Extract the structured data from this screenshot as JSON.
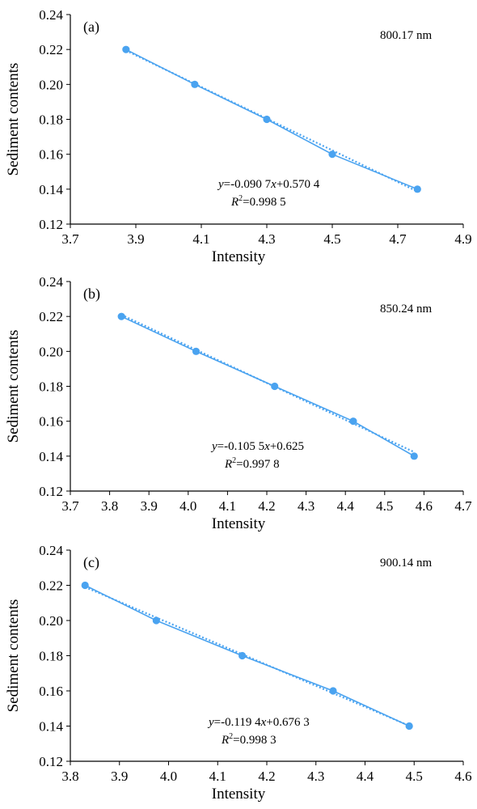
{
  "y_axis_title": "Sediment contents",
  "x_axis_title": "Intensity",
  "series_color": "#4aa3f0",
  "chart_data": [
    {
      "type": "line",
      "panel_label": "(a)",
      "wavelength": "800.17 nm",
      "equation": "y=-0.090 7x+0.570 4",
      "r2": "R2=0.998 5",
      "fit": {
        "slope": -0.0907,
        "intercept": 0.5704
      },
      "xlabel": "Intensity",
      "ylabel": "Sediment contents",
      "xlim": [
        3.7,
        4.9
      ],
      "ylim": [
        0.12,
        0.24
      ],
      "x_ticks": [
        "3.7",
        "3.9",
        "4.1",
        "4.3",
        "4.5",
        "4.7",
        "4.9"
      ],
      "y_ticks": [
        "0.12",
        "0.14",
        "0.16",
        "0.18",
        "0.20",
        "0.22",
        "0.24"
      ],
      "x": [
        3.87,
        4.08,
        4.3,
        4.5,
        4.76
      ],
      "y": [
        0.22,
        0.2,
        0.18,
        0.16,
        0.14
      ]
    },
    {
      "type": "line",
      "panel_label": "(b)",
      "wavelength": "850.24 nm",
      "equation": "y=-0.105 5x+0.625",
      "r2": "R2=0.997 8",
      "fit": {
        "slope": -0.1055,
        "intercept": 0.625
      },
      "xlabel": "Intensity",
      "ylabel": "Sediment contents",
      "xlim": [
        3.7,
        4.7
      ],
      "ylim": [
        0.12,
        0.24
      ],
      "x_ticks": [
        "3.7",
        "3.8",
        "3.9",
        "4.0",
        "4.1",
        "4.2",
        "4.3",
        "4.4",
        "4.5",
        "4.6",
        "4.7"
      ],
      "y_ticks": [
        "0.12",
        "0.14",
        "0.16",
        "0.18",
        "0.20",
        "0.22",
        "0.24"
      ],
      "x": [
        3.83,
        4.02,
        4.22,
        4.42,
        4.575
      ],
      "y": [
        0.22,
        0.2,
        0.18,
        0.16,
        0.14
      ]
    },
    {
      "type": "line",
      "panel_label": "(c)",
      "wavelength": "900.14 nm",
      "equation": "y=-0.119 4x+0.676 3",
      "r2": "R2=0.998 3",
      "fit": {
        "slope": -0.1194,
        "intercept": 0.6763
      },
      "xlabel": "Intensity",
      "ylabel": "Sediment contents",
      "xlim": [
        3.8,
        4.6
      ],
      "ylim": [
        0.12,
        0.24
      ],
      "x_ticks": [
        "3.8",
        "3.9",
        "4.0",
        "4.1",
        "4.2",
        "4.3",
        "4.4",
        "4.5",
        "4.6"
      ],
      "y_ticks": [
        "0.12",
        "0.14",
        "0.16",
        "0.18",
        "0.20",
        "0.22",
        "0.24"
      ],
      "x": [
        3.83,
        3.975,
        4.15,
        4.335,
        4.49
      ],
      "y": [
        0.22,
        0.2,
        0.18,
        0.16,
        0.14
      ]
    }
  ]
}
